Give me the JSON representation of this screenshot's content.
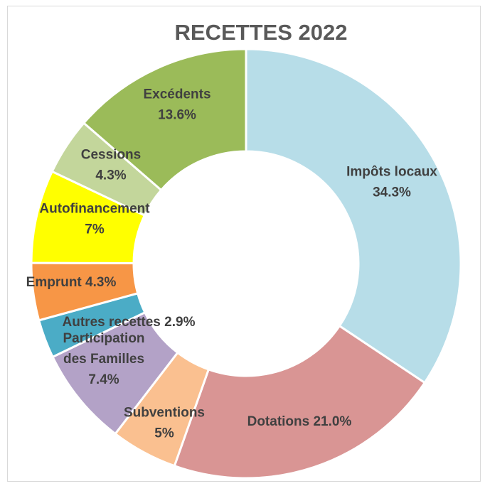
{
  "chart_data": {
    "type": "pie",
    "title": "RECETTES 2022",
    "donut": true,
    "legend": "none",
    "slices": [
      {
        "name": "Impôts locaux",
        "value": 34.3,
        "label_lines": [
          "Impôts locaux",
          "34.3%"
        ],
        "color": "#b7dde8"
      },
      {
        "name": "Dotations",
        "value": 21.0,
        "label_lines": [
          "Dotations 21.0%"
        ],
        "color": "#d99594"
      },
      {
        "name": "Subventions",
        "value": 5,
        "label_lines": [
          "Subventions",
          "5%"
        ],
        "color": "#fac090"
      },
      {
        "name": "Participation des Familles",
        "value": 7.4,
        "label_lines": [
          "Participation",
          "des Familles",
          "7.4%"
        ],
        "color": "#b3a2c7"
      },
      {
        "name": "Autres recettes",
        "value": 2.9,
        "label_lines": [
          "Autres recettes  2.9%"
        ],
        "color": "#4bacc6"
      },
      {
        "name": "Emprunt",
        "value": 4.3,
        "label_lines": [
          "Emprunt 4.3%"
        ],
        "color": "#f79646"
      },
      {
        "name": "Autofinancement",
        "value": 7,
        "label_lines": [
          "Autofinancement",
          "7%"
        ],
        "color": "#ffff00"
      },
      {
        "name": "Cessions",
        "value": 4.3,
        "label_lines": [
          "Cessions",
          "4.3%"
        ],
        "color": "#c3d69b"
      },
      {
        "name": "Excédents",
        "value": 13.6,
        "label_lines": [
          "Excédents",
          "13.6%"
        ],
        "color": "#9bbb59"
      }
    ]
  }
}
